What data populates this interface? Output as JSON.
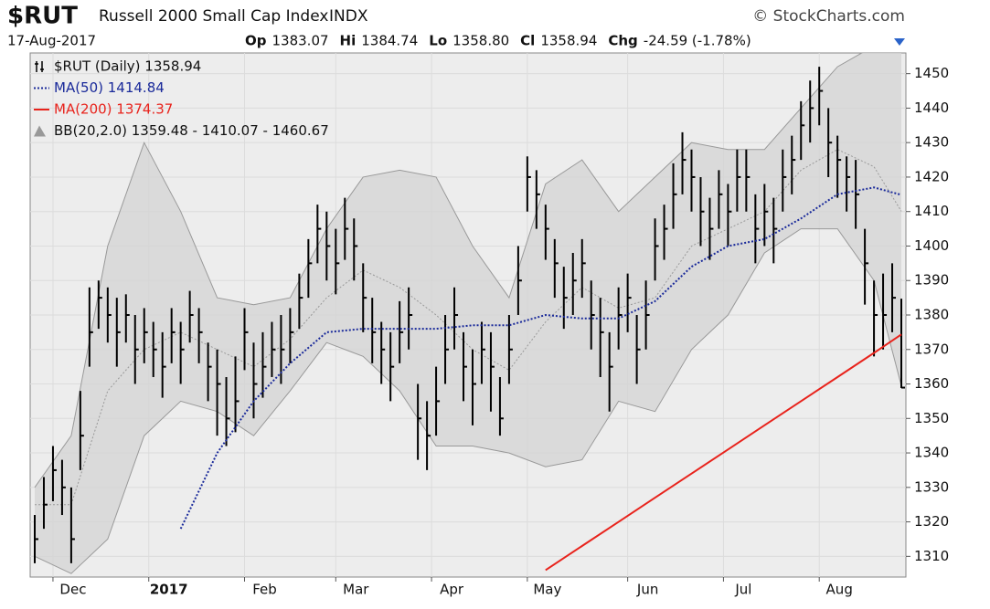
{
  "chart_data": {
    "type": "ohlc",
    "title": "$RUT",
    "subtitle": "Russell 2000 Small Cap Index",
    "exchange": "INDX",
    "credit": "© StockCharts.com",
    "date": "17-Aug-2017",
    "quote": [
      {
        "label": "Op",
        "value": "1383.07"
      },
      {
        "label": "Hi",
        "value": "1384.74"
      },
      {
        "label": "Lo",
        "value": "1358.80"
      },
      {
        "label": "Cl",
        "value": "1358.94"
      },
      {
        "label": "Chg",
        "value": "-24.59 (-1.78%)"
      }
    ],
    "price_name": "$RUT (Daily) 1358.94",
    "price_color": "#000000",
    "high": [
      1322,
      1333,
      1342,
      1338,
      1330,
      1358,
      1388,
      1390,
      1388,
      1385,
      1386,
      1380,
      1382,
      1378,
      1375,
      1382,
      1378,
      1387,
      1382,
      1372,
      1370,
      1362,
      1368,
      1382,
      1372,
      1375,
      1378,
      1380,
      1382,
      1392,
      1402,
      1412,
      1410,
      1405,
      1414,
      1408,
      1395,
      1385,
      1378,
      1375,
      1384,
      1388,
      1360,
      1355,
      1365,
      1380,
      1388,
      1375,
      1370,
      1378,
      1375,
      1362,
      1380,
      1400,
      1426,
      1422,
      1412,
      1402,
      1394,
      1398,
      1402,
      1390,
      1385,
      1375,
      1388,
      1392,
      1380,
      1390,
      1408,
      1412,
      1424,
      1433,
      1428,
      1420,
      1414,
      1422,
      1418,
      1428,
      1428,
      1415,
      1418,
      1414,
      1428,
      1432,
      1442,
      1448,
      1452,
      1440,
      1432,
      1426,
      1425,
      1405,
      1390,
      1392,
      1395,
      1384.74
    ],
    "low": [
      1308,
      1318,
      1326,
      1322,
      1308,
      1335,
      1365,
      1376,
      1372,
      1365,
      1372,
      1360,
      1366,
      1362,
      1356,
      1366,
      1360,
      1372,
      1366,
      1355,
      1345,
      1342,
      1346,
      1364,
      1350,
      1356,
      1362,
      1360,
      1366,
      1376,
      1385,
      1395,
      1390,
      1386,
      1396,
      1390,
      1375,
      1366,
      1360,
      1355,
      1366,
      1370,
      1338,
      1335,
      1345,
      1360,
      1370,
      1355,
      1348,
      1360,
      1352,
      1345,
      1360,
      1380,
      1410,
      1405,
      1396,
      1385,
      1376,
      1380,
      1385,
      1370,
      1362,
      1352,
      1370,
      1375,
      1360,
      1370,
      1390,
      1396,
      1405,
      1415,
      1410,
      1400,
      1396,
      1405,
      1400,
      1410,
      1410,
      1395,
      1400,
      1395,
      1410,
      1415,
      1425,
      1430,
      1435,
      1420,
      1414,
      1410,
      1405,
      1383,
      1368,
      1370,
      1375,
      1358.8
    ],
    "close": [
      1315,
      1325,
      1335,
      1330,
      1315,
      1345,
      1375,
      1385,
      1380,
      1375,
      1380,
      1370,
      1375,
      1370,
      1365,
      1375,
      1370,
      1380,
      1375,
      1365,
      1360,
      1350,
      1355,
      1375,
      1360,
      1365,
      1370,
      1370,
      1375,
      1385,
      1395,
      1405,
      1400,
      1395,
      1405,
      1400,
      1385,
      1375,
      1370,
      1365,
      1375,
      1380,
      1350,
      1345,
      1355,
      1370,
      1380,
      1365,
      1360,
      1370,
      1365,
      1350,
      1370,
      1390,
      1420,
      1415,
      1405,
      1395,
      1385,
      1390,
      1395,
      1380,
      1375,
      1365,
      1380,
      1385,
      1370,
      1380,
      1400,
      1405,
      1415,
      1425,
      1420,
      1410,
      1405,
      1415,
      1410,
      1420,
      1420,
      1405,
      1410,
      1405,
      1420,
      1425,
      1435,
      1440,
      1445,
      1430,
      1425,
      1420,
      1415,
      1395,
      1380,
      1380,
      1385,
      1358.94
    ],
    "overlay_x": [
      0,
      4,
      8,
      12,
      16,
      20,
      24,
      28,
      32,
      36,
      40,
      44,
      48,
      52,
      56,
      60,
      64,
      68,
      72,
      76,
      80,
      84,
      88,
      92,
      95
    ],
    "overlays": [
      {
        "name": "MA(50) 1414.84",
        "color": "#1a2a9a",
        "dashed": true,
        "values": [
          null,
          null,
          null,
          null,
          1318,
          1340,
          1355,
          1366,
          1375,
          1376,
          1376,
          1376,
          1377,
          1377,
          1380,
          1379,
          1379,
          1384,
          1394,
          1400,
          1402,
          1408,
          1415,
          1417,
          1414.84
        ]
      },
      {
        "name": "MA(200) 1374.37",
        "color": "#e8231c",
        "dashed": false,
        "values": [
          null,
          null,
          null,
          null,
          null,
          null,
          null,
          null,
          null,
          null,
          null,
          null,
          null,
          null,
          1306,
          1313,
          1320,
          1327,
          1334,
          1341,
          1348,
          1355,
          1362,
          1369,
          1374.37
        ]
      }
    ],
    "bands": {
      "name": "BB(20,2.0) 1359.48 - 1410.07 - 1460.67",
      "color": "#d4d4d4",
      "edge_color": "#999999",
      "upper": [
        1330,
        1345,
        1400,
        1430,
        1410,
        1385,
        1383,
        1385,
        1405,
        1420,
        1422,
        1420,
        1400,
        1385,
        1418,
        1425,
        1410,
        1420,
        1430,
        1428,
        1428,
        1440,
        1452,
        1458,
        1460.67
      ],
      "middle": [
        1325,
        1325,
        1358,
        1370,
        1375,
        1370,
        1365,
        1373,
        1385,
        1393,
        1388,
        1380,
        1370,
        1364,
        1378,
        1388,
        1382,
        1385,
        1400,
        1405,
        1410,
        1422,
        1428,
        1423,
        1410.07
      ],
      "lower": [
        1310,
        1305,
        1315,
        1345,
        1355,
        1352,
        1345,
        1358,
        1372,
        1368,
        1358,
        1342,
        1342,
        1340,
        1336,
        1338,
        1355,
        1352,
        1370,
        1380,
        1398,
        1405,
        1405,
        1390,
        1359.48
      ]
    },
    "xlim": [
      -0.5,
      95.5
    ],
    "xticks": [
      {
        "value": 2,
        "label": "Dec"
      },
      {
        "value": 12.5,
        "label": "2017"
      },
      {
        "value": 23,
        "label": "Feb"
      },
      {
        "value": 33,
        "label": "Mar"
      },
      {
        "value": 43.5,
        "label": "Apr"
      },
      {
        "value": 54,
        "label": "May"
      },
      {
        "value": 65,
        "label": "Jun"
      },
      {
        "value": 75.5,
        "label": "Jul"
      },
      {
        "value": 86,
        "label": "Aug"
      }
    ],
    "ylim": [
      1304,
      1456
    ],
    "yticks": [
      1310,
      1320,
      1330,
      1340,
      1350,
      1360,
      1370,
      1380,
      1390,
      1400,
      1410,
      1420,
      1430,
      1440,
      1450
    ],
    "grid": true
  }
}
